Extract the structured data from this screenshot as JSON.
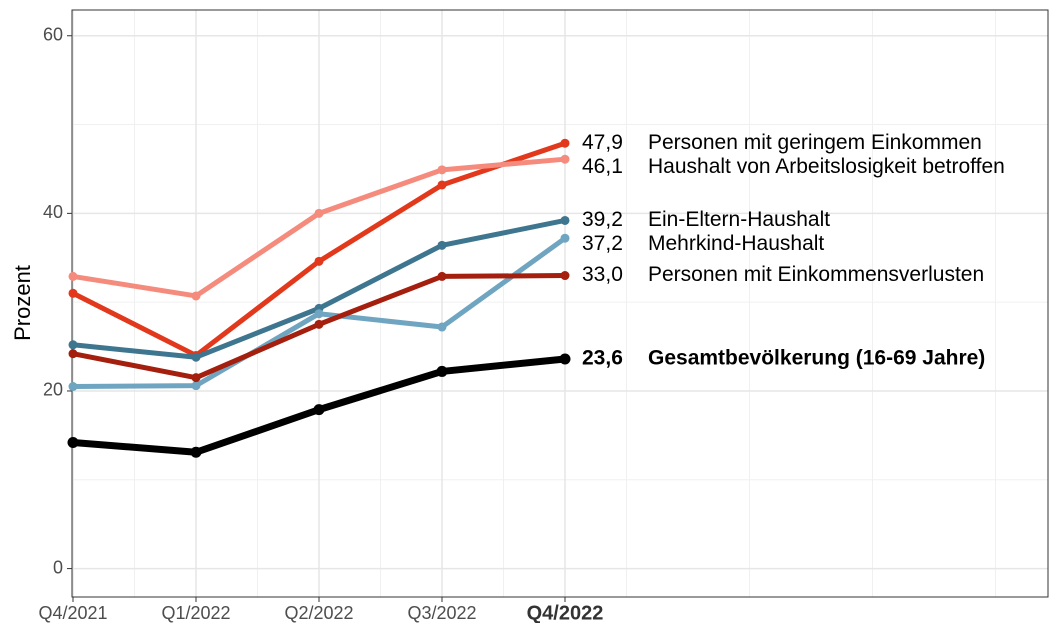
{
  "chart_data": {
    "type": "line",
    "y_label": "Prozent",
    "categories": [
      "Q4/2021",
      "Q1/2022",
      "Q2/2022",
      "Q3/2022",
      "Q4/2022"
    ],
    "highlight_category": "Q4/2022",
    "ylim": [
      -3.2,
      62.9
    ],
    "yticks": [
      0,
      20,
      40,
      60
    ],
    "minor_yticks": [
      10,
      30,
      50
    ],
    "grid": true,
    "series": [
      {
        "name": "Personen mit geringem Einkommen",
        "color": "#e2381c",
        "values": [
          31.0,
          24.0,
          34.6,
          43.2,
          47.9
        ],
        "value_labels": [
          null,
          null,
          null,
          null,
          "47,9"
        ],
        "bold": false
      },
      {
        "name": "Haushalt von Arbeitslosigkeit betroffen",
        "color": "#f58b7c",
        "values": [
          32.9,
          30.7,
          40.0,
          44.9,
          46.1
        ],
        "value_labels": [
          null,
          null,
          null,
          null,
          "46,1"
        ],
        "bold": false
      },
      {
        "name": "Ein-Eltern-Haushalt",
        "color": "#3e758f",
        "values": [
          25.2,
          23.8,
          29.3,
          36.4,
          39.2
        ],
        "value_labels": [
          null,
          null,
          null,
          null,
          "39,2"
        ],
        "bold": false
      },
      {
        "name": "Mehrkind-Haushalt",
        "color": "#6fa5c0",
        "values": [
          20.5,
          20.6,
          28.7,
          27.2,
          37.2
        ],
        "value_labels": [
          null,
          null,
          null,
          null,
          "37,2"
        ],
        "bold": false
      },
      {
        "name": "Personen mit Einkommensverlusten",
        "color": "#a41f0e",
        "values": [
          24.2,
          21.5,
          27.5,
          32.9,
          33.0
        ],
        "value_labels": [
          null,
          null,
          null,
          null,
          "33,0"
        ],
        "bold": false
      },
      {
        "name": "Gesamtbevölkerung (16-69 Jahre)",
        "color": "#000000",
        "values": [
          14.2,
          13.1,
          17.9,
          22.2,
          23.6
        ],
        "value_labels": [
          null,
          null,
          null,
          null,
          "23,6"
        ],
        "bold": true
      }
    ]
  }
}
